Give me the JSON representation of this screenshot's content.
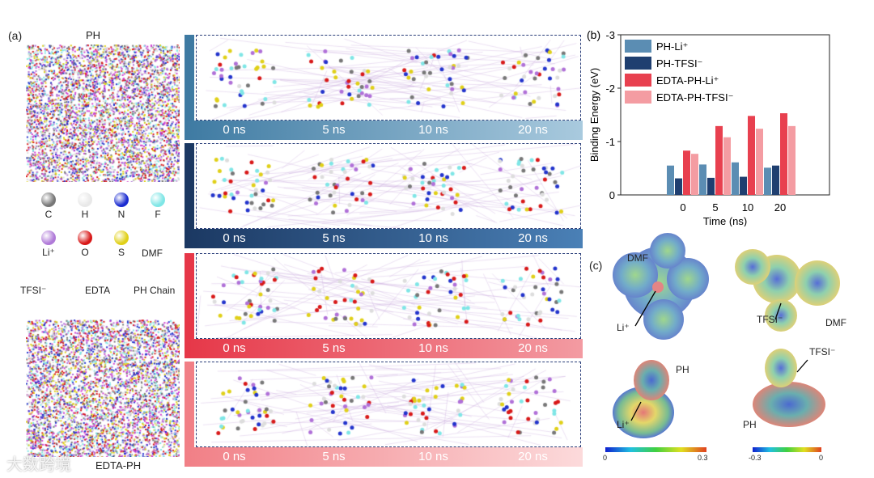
{
  "panel_a": {
    "label": "(a)",
    "top_title": "PH",
    "bottom_title": "EDTA-PH",
    "atoms": [
      {
        "name": "C",
        "color": "#777777"
      },
      {
        "name": "H",
        "color": "#e8e8e8"
      },
      {
        "name": "N",
        "color": "#1a2bd0"
      },
      {
        "name": "F",
        "color": "#7fe6e6"
      },
      {
        "name": "Li⁺",
        "color": "#b07ad8"
      },
      {
        "name": "O",
        "color": "#d81818"
      },
      {
        "name": "S",
        "color": "#e0d018"
      }
    ],
    "molecules": [
      "DMF",
      "TFSI⁻",
      "EDTA",
      "PH Chain"
    ],
    "rows": [
      {
        "times": [
          "0 ns",
          "5 ns",
          "10 ns",
          "20 ns"
        ],
        "from": "#3e7aa2",
        "to": "#a9cade"
      },
      {
        "times": [
          "0 ns",
          "5 ns",
          "10 ns",
          "20 ns"
        ],
        "from": "#1b3862",
        "to": "#4a80b6"
      },
      {
        "times": [
          "0 ns",
          "5 ns",
          "10 ns",
          "20 ns"
        ],
        "from": "#e63748",
        "to": "#f39ba2"
      },
      {
        "times": [
          "0 ns",
          "5 ns",
          "10 ns",
          "20 ns"
        ],
        "from": "#f17f86",
        "to": "#fcdadb"
      }
    ]
  },
  "chart_data": {
    "type": "bar",
    "panel_label": "(b)",
    "categories": [
      "0",
      "5",
      "10",
      "20"
    ],
    "xlabel": "Time (ns)",
    "ylabel": "Binding Energy (eV)",
    "ylim": [
      0,
      -3
    ],
    "yticks": [
      "0",
      "-1",
      "-2",
      "-3"
    ],
    "legend_position": "top-left",
    "series": [
      {
        "name": "PH-Li⁺",
        "color": "#5b8db3",
        "values": [
          -0.55,
          -0.57,
          -0.61,
          -0.51
        ]
      },
      {
        "name": "PH-TFSI⁻",
        "color": "#1f3f70",
        "values": [
          -0.31,
          -0.32,
          -0.34,
          -0.55
        ]
      },
      {
        "name": "EDTA-PH-Li⁺",
        "color": "#e8404f",
        "values": [
          -0.83,
          -1.29,
          -1.48,
          -1.53
        ]
      },
      {
        "name": "EDTA-PH-TFSI⁻",
        "color": "#f49ca2",
        "values": [
          -0.77,
          -1.08,
          -1.24,
          -1.29
        ]
      }
    ]
  },
  "panel_c": {
    "label": "(c)",
    "annotations": {
      "dmf1": "DMF",
      "li1": "Li⁺",
      "tfsi1": "TFSI⁻",
      "dmf2": "DMF",
      "ph1": "PH",
      "li2": "Li⁺",
      "tfsi2": "TFSI⁻",
      "ph2": "PH"
    },
    "colorbar_left": {
      "min": "0",
      "max": "0.3"
    },
    "colorbar_right": {
      "min": "-0.3",
      "max": "0"
    }
  },
  "watermark": "大数跨境"
}
